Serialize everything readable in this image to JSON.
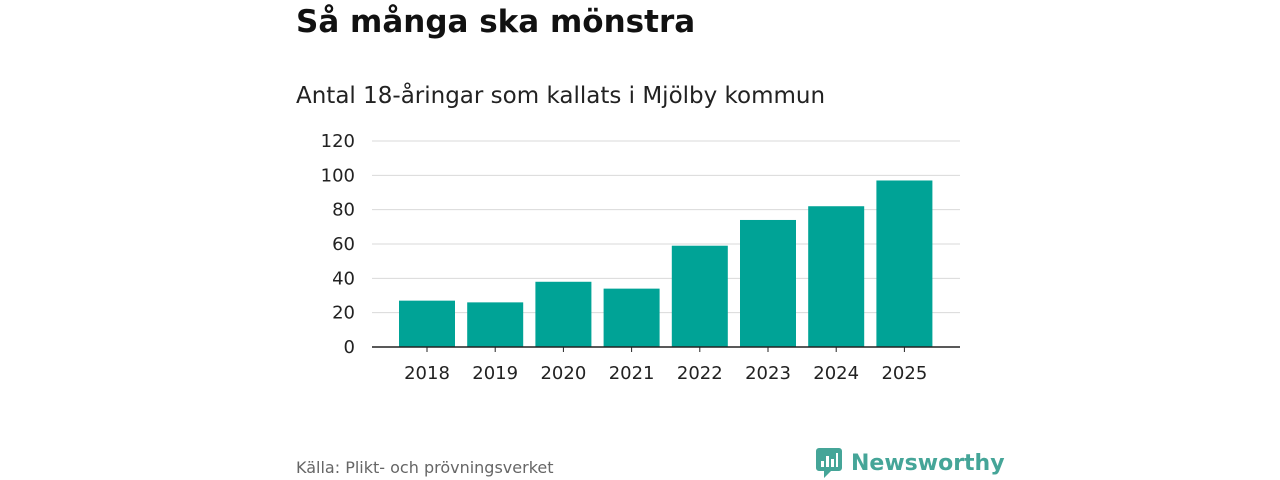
{
  "title": "Så många ska mönstra",
  "subtitle": "Antal 18-åringar som kallats i Mjölby kommun",
  "source": "Källa: Plikt- och prövningsverket",
  "brand": {
    "name": "Newsworthy",
    "icon": "newsworthy-logo-icon",
    "color": "#45a598"
  },
  "colors": {
    "bar": "#00a396",
    "grid": "#d9d9d9",
    "axis": "#222222"
  },
  "chart_data": {
    "type": "bar",
    "title": "Så många ska mönstra",
    "subtitle": "Antal 18-åringar som kallats i Mjölby kommun",
    "xlabel": "",
    "ylabel": "",
    "categories": [
      "2018",
      "2019",
      "2020",
      "2021",
      "2022",
      "2023",
      "2024",
      "2025"
    ],
    "values": [
      27,
      26,
      38,
      34,
      59,
      74,
      82,
      97
    ],
    "ylim": [
      0,
      120
    ],
    "yticks": [
      0,
      20,
      40,
      60,
      80,
      100,
      120
    ],
    "grid": true,
    "legend": "none"
  }
}
